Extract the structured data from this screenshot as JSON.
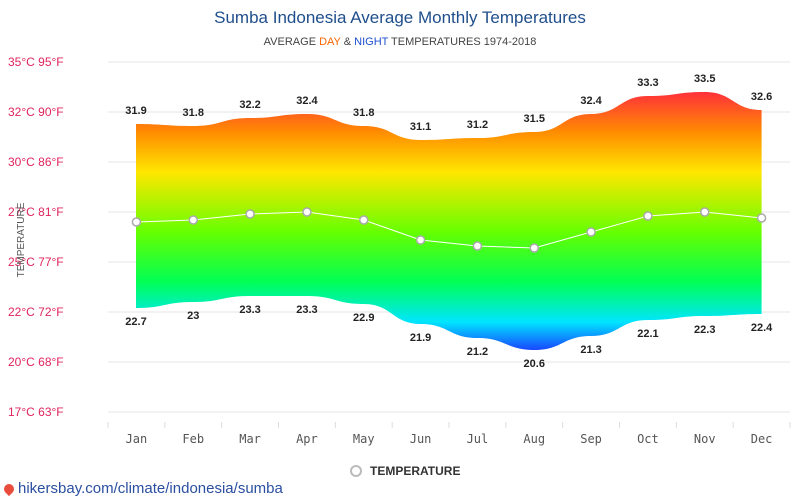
{
  "page": {
    "title": "Sumba Indonesia Average Monthly Temperatures",
    "subtitle_prefix": "AVERAGE ",
    "subtitle_day": "DAY",
    "subtitle_amp": " & ",
    "subtitle_night": "NIGHT",
    "subtitle_suffix": " TEMPERATURES 1974-2018",
    "legend_label": "TEMPERATURE",
    "source_text": "hikersbay.com/climate/indonesia/sumba"
  },
  "chart_data": {
    "type": "area",
    "categories": [
      "Jan",
      "Feb",
      "Mar",
      "Apr",
      "May",
      "Jun",
      "Jul",
      "Aug",
      "Sep",
      "Oct",
      "Nov",
      "Dec"
    ],
    "series": [
      {
        "values": [
          31.9,
          31.8,
          32.2,
          32.4,
          31.8,
          31.1,
          31.2,
          31.5,
          32.4,
          33.3,
          33.5,
          32.6
        ]
      },
      {
        "values": [
          22.7,
          23,
          23.3,
          23.3,
          22.9,
          21.9,
          21.2,
          20.6,
          21.3,
          22.1,
          22.3,
          22.4
        ]
      },
      {
        "name": "TEMPERATURE",
        "values": [
          27.0,
          27.1,
          27.4,
          27.5,
          27.1,
          26.1,
          25.8,
          25.7,
          26.5,
          27.3,
          27.5,
          27.2
        ]
      }
    ],
    "ylabel": "TEMPERATURE",
    "ylim": [
      17,
      35
    ],
    "y_ticks": [
      {
        "value": 35,
        "label": "35°C 95°F"
      },
      {
        "value": 32.5,
        "label": "32°C 90°F"
      },
      {
        "value": 30,
        "label": "30°C 86°F"
      },
      {
        "value": 27.5,
        "label": "27°C 81°F"
      },
      {
        "value": 25,
        "label": "25°C 77°F"
      },
      {
        "value": 22.5,
        "label": "22°C 72°F"
      },
      {
        "value": 20,
        "label": "20°C 68°F"
      },
      {
        "value": 17.5,
        "label": "17°C 63°F"
      }
    ],
    "grid": true,
    "colors": {
      "gradient_top": "#ff1a4a",
      "gradient_mid": "#66ff00",
      "gradient_low": "#00e5ff",
      "gradient_bottom": "#1a3cff",
      "tick_label": "#e0245e"
    }
  }
}
